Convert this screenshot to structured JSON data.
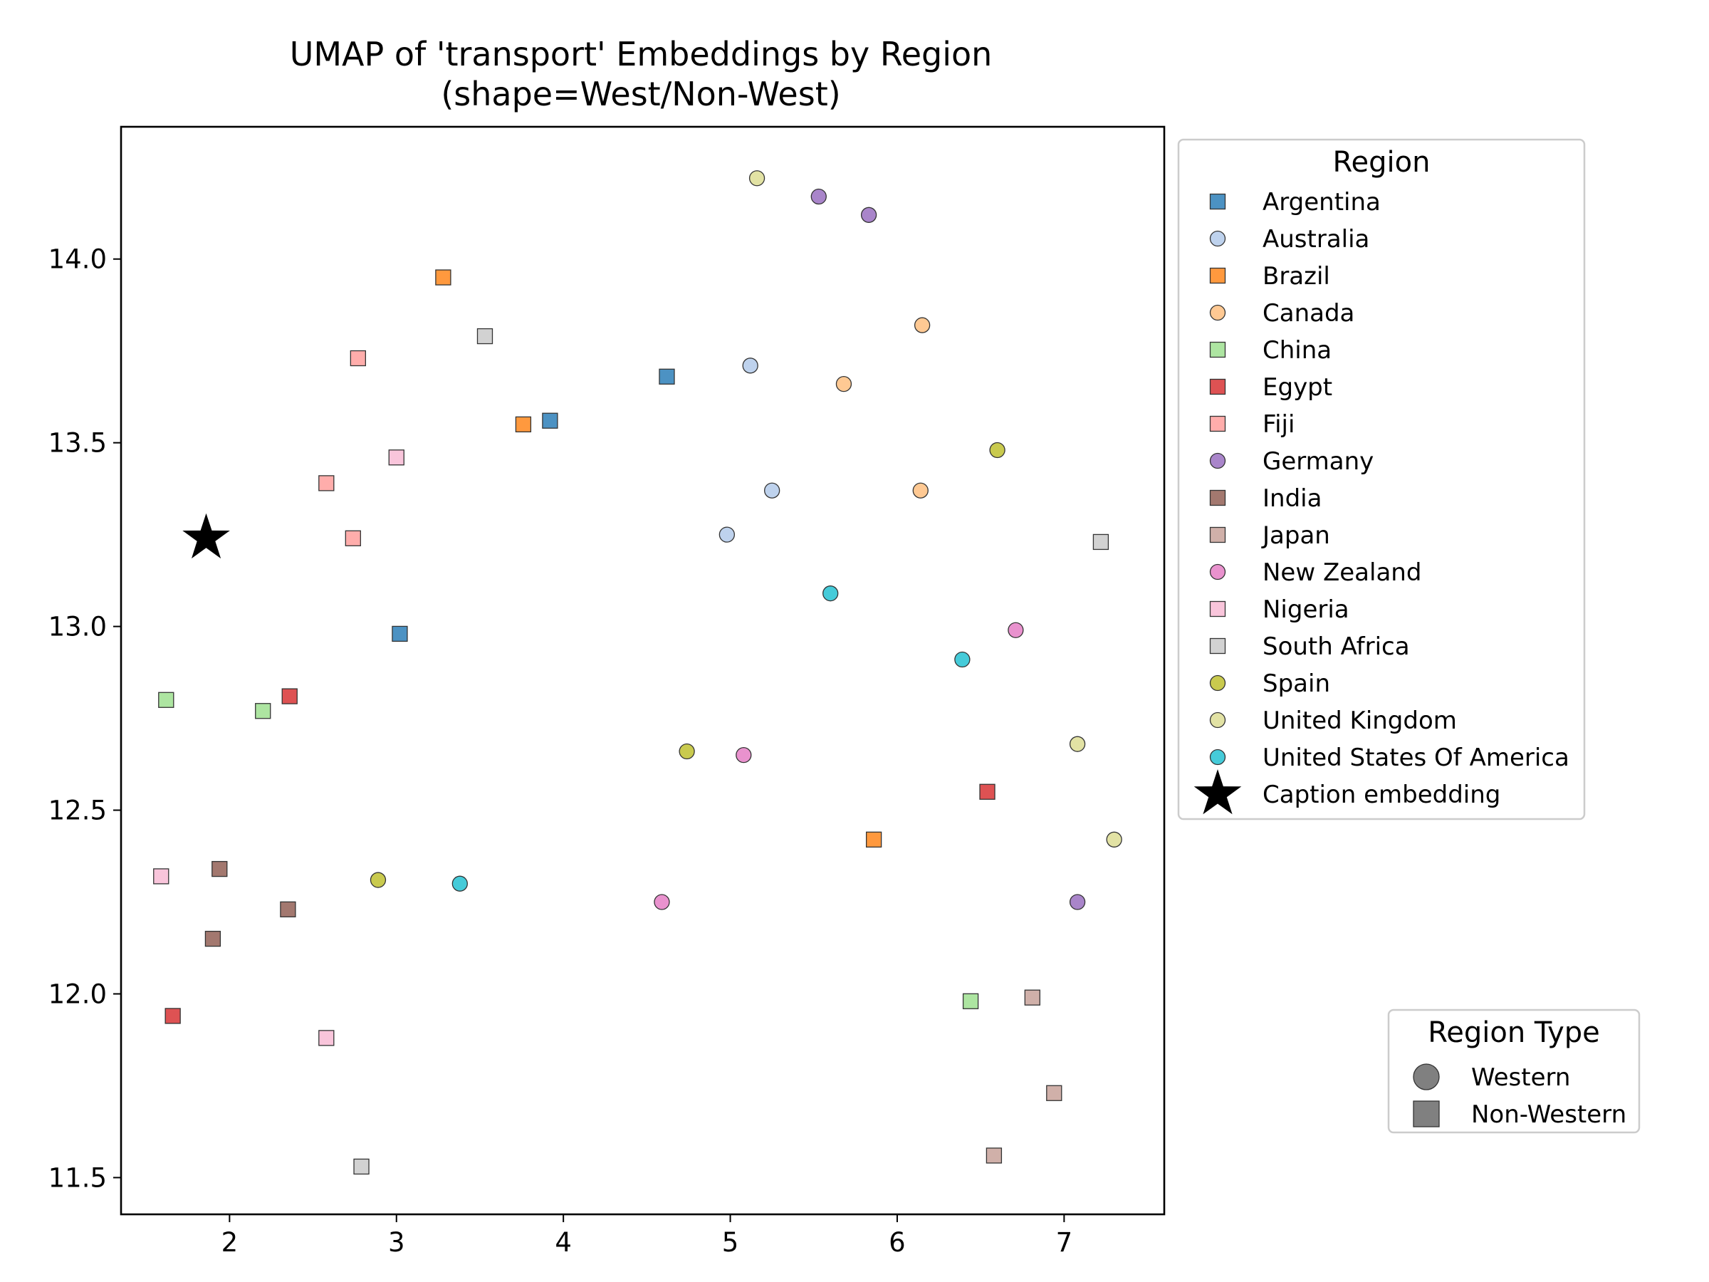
{
  "chart_data": {
    "type": "scatter",
    "title_line1": "UMAP of 'transport' Embeddings by Region",
    "title_line2": "(shape=West/Non-West)",
    "xlabel": "",
    "ylabel": "",
    "xlim": [
      1.35,
      7.6
    ],
    "ylim": [
      11.4,
      14.36
    ],
    "xticks": [
      2,
      3,
      4,
      5,
      6,
      7
    ],
    "yticks": [
      11.5,
      12.0,
      12.5,
      13.0,
      13.5,
      14.0
    ],
    "ytick_labels": [
      "11.5",
      "12.0",
      "12.5",
      "13.0",
      "13.5",
      "14.0"
    ],
    "grid": false,
    "legend_region": {
      "title": "Region",
      "placement": "outside upper right"
    },
    "legend_type": {
      "title": "Region Type",
      "placement": "outside lower right",
      "entries": [
        {
          "label": "Western",
          "shape": "circle"
        },
        {
          "label": "Non-Western",
          "shape": "square"
        }
      ]
    },
    "series": [
      {
        "name": "Argentina",
        "shape": "square",
        "color": "#1f77b4",
        "points": [
          [
            4.62,
            13.68
          ],
          [
            3.92,
            13.56
          ],
          [
            3.02,
            12.98
          ]
        ]
      },
      {
        "name": "Australia",
        "shape": "circle",
        "color": "#aec7e8",
        "points": [
          [
            5.12,
            13.71
          ],
          [
            5.25,
            13.37
          ],
          [
            4.98,
            13.25
          ]
        ]
      },
      {
        "name": "Brazil",
        "shape": "square",
        "color": "#ff7f0e",
        "points": [
          [
            3.28,
            13.95
          ],
          [
            3.76,
            13.55
          ],
          [
            5.86,
            12.42
          ]
        ]
      },
      {
        "name": "Canada",
        "shape": "circle",
        "color": "#ffbb78",
        "points": [
          [
            6.15,
            13.82
          ],
          [
            5.68,
            13.66
          ],
          [
            6.14,
            13.37
          ]
        ]
      },
      {
        "name": "China",
        "shape": "square",
        "color": "#98df8a",
        "points": [
          [
            1.62,
            12.8
          ],
          [
            2.2,
            12.77
          ],
          [
            6.44,
            11.98
          ]
        ]
      },
      {
        "name": "Egypt",
        "shape": "square",
        "color": "#d62728",
        "points": [
          [
            2.36,
            12.81
          ],
          [
            6.54,
            12.55
          ],
          [
            1.66,
            11.94
          ]
        ]
      },
      {
        "name": "Fiji",
        "shape": "square",
        "color": "#ff9896",
        "points": [
          [
            2.77,
            13.73
          ],
          [
            2.58,
            13.39
          ],
          [
            2.74,
            13.24
          ]
        ]
      },
      {
        "name": "Germany",
        "shape": "circle",
        "color": "#9467bd",
        "points": [
          [
            5.53,
            14.17
          ],
          [
            5.83,
            14.12
          ],
          [
            7.08,
            12.25
          ]
        ]
      },
      {
        "name": "India",
        "shape": "square",
        "color": "#8c564b",
        "points": [
          [
            1.94,
            12.34
          ],
          [
            2.35,
            12.23
          ],
          [
            1.9,
            12.15
          ]
        ]
      },
      {
        "name": "Japan",
        "shape": "square",
        "color": "#c49c94",
        "points": [
          [
            6.81,
            11.99
          ],
          [
            6.94,
            11.73
          ],
          [
            6.58,
            11.56
          ]
        ]
      },
      {
        "name": "New Zealand",
        "shape": "circle",
        "color": "#e377c2",
        "points": [
          [
            6.71,
            12.99
          ],
          [
            5.08,
            12.65
          ],
          [
            4.59,
            12.25
          ]
        ]
      },
      {
        "name": "Nigeria",
        "shape": "square",
        "color": "#f7b6d2",
        "points": [
          [
            3.0,
            13.46
          ],
          [
            1.59,
            12.32
          ],
          [
            2.58,
            11.88
          ]
        ]
      },
      {
        "name": "South Africa",
        "shape": "square",
        "color": "#c7c7c7",
        "points": [
          [
            3.53,
            13.79
          ],
          [
            7.22,
            13.23
          ],
          [
            2.79,
            11.53
          ]
        ]
      },
      {
        "name": "Spain",
        "shape": "circle",
        "color": "#bcbd22",
        "points": [
          [
            6.6,
            13.48
          ],
          [
            4.74,
            12.66
          ],
          [
            2.89,
            12.31
          ]
        ]
      },
      {
        "name": "United Kingdom",
        "shape": "circle",
        "color": "#dbdb8d",
        "points": [
          [
            5.16,
            14.22
          ],
          [
            7.08,
            12.68
          ],
          [
            7.3,
            12.42
          ]
        ]
      },
      {
        "name": "United States Of America",
        "shape": "circle",
        "color": "#17becf",
        "points": [
          [
            5.6,
            13.09
          ],
          [
            6.39,
            12.91
          ],
          [
            3.38,
            12.3
          ]
        ]
      },
      {
        "name": "Caption embedding",
        "shape": "star",
        "color": "#000000",
        "points": [
          [
            1.86,
            13.24
          ]
        ]
      }
    ]
  }
}
